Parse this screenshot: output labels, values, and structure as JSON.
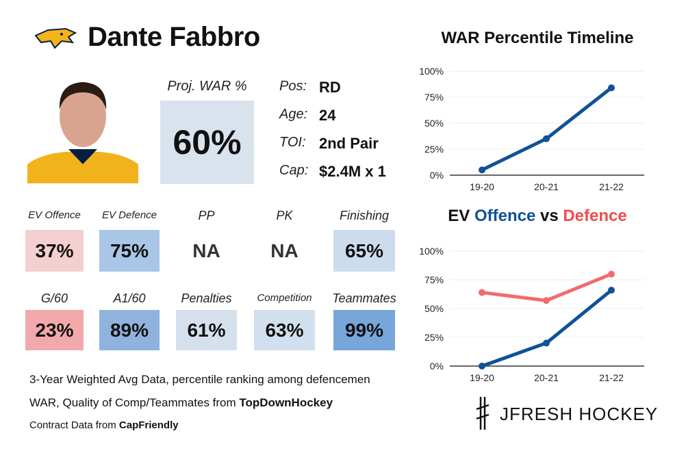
{
  "player": {
    "name": "Dante Fabbro",
    "proj_war_label": "Proj. WAR %",
    "proj_war": "60%"
  },
  "info": [
    {
      "label": "Pos:",
      "value": "RD"
    },
    {
      "label": "Age:",
      "value": "24"
    },
    {
      "label": "TOI:",
      "value": "2nd Pair"
    },
    {
      "label": "Cap:",
      "value": "$2.4M x 1"
    }
  ],
  "tiles": [
    {
      "label": "EV Offence",
      "value": "37%",
      "color": "#f4cfd0"
    },
    {
      "label": "EV Defence",
      "value": "75%",
      "color": "#a9c6e6"
    },
    {
      "label": "PP",
      "value": "NA",
      "color": "#ffffff"
    },
    {
      "label": "PK",
      "value": "NA",
      "color": "#ffffff"
    },
    {
      "label": "Finishing",
      "value": "65%",
      "color": "#cddcec"
    },
    {
      "label": "G/60",
      "value": "23%",
      "color": "#f3a9ab"
    },
    {
      "label": "A1/60",
      "value": "89%",
      "color": "#8fb3de"
    },
    {
      "label": "Penalties",
      "value": "61%",
      "color": "#d5e0ed"
    },
    {
      "label": "Competition",
      "value": "63%",
      "color": "#d2dfee"
    },
    {
      "label": "Teammates",
      "value": "99%",
      "color": "#76a6da"
    }
  ],
  "footer": {
    "line1": "3-Year Weighted Avg Data, percentile ranking among defencemen",
    "line2_prefix": "WAR, Quality of Comp/Teammates from ",
    "line2_source": "TopDownHockey",
    "line3_prefix": "Contract Data from ",
    "line3_source": "CapFriendly",
    "brand": "JFRESH HOCKEY"
  },
  "chart_data": [
    {
      "type": "line",
      "title": "WAR Percentile Timeline",
      "categories": [
        "19-20",
        "20-21",
        "21-22"
      ],
      "series": [
        {
          "name": "WAR",
          "values": [
            5,
            35,
            84
          ],
          "color": "#0f5296"
        }
      ],
      "ylim": [
        0,
        100
      ],
      "yticks": [
        "0%",
        "25%",
        "50%",
        "75%",
        "100%"
      ]
    },
    {
      "type": "line",
      "title_parts": [
        "EV ",
        "Offence",
        " vs ",
        "Defence"
      ],
      "categories": [
        "19-20",
        "20-21",
        "21-22"
      ],
      "series": [
        {
          "name": "Offence",
          "values": [
            0,
            20,
            66
          ],
          "color": "#0f5296"
        },
        {
          "name": "Defence",
          "values": [
            64,
            57,
            80
          ],
          "color": "#f26b6b"
        }
      ],
      "ylim": [
        0,
        100
      ],
      "yticks": [
        "0%",
        "25%",
        "50%",
        "75%",
        "100%"
      ]
    }
  ]
}
